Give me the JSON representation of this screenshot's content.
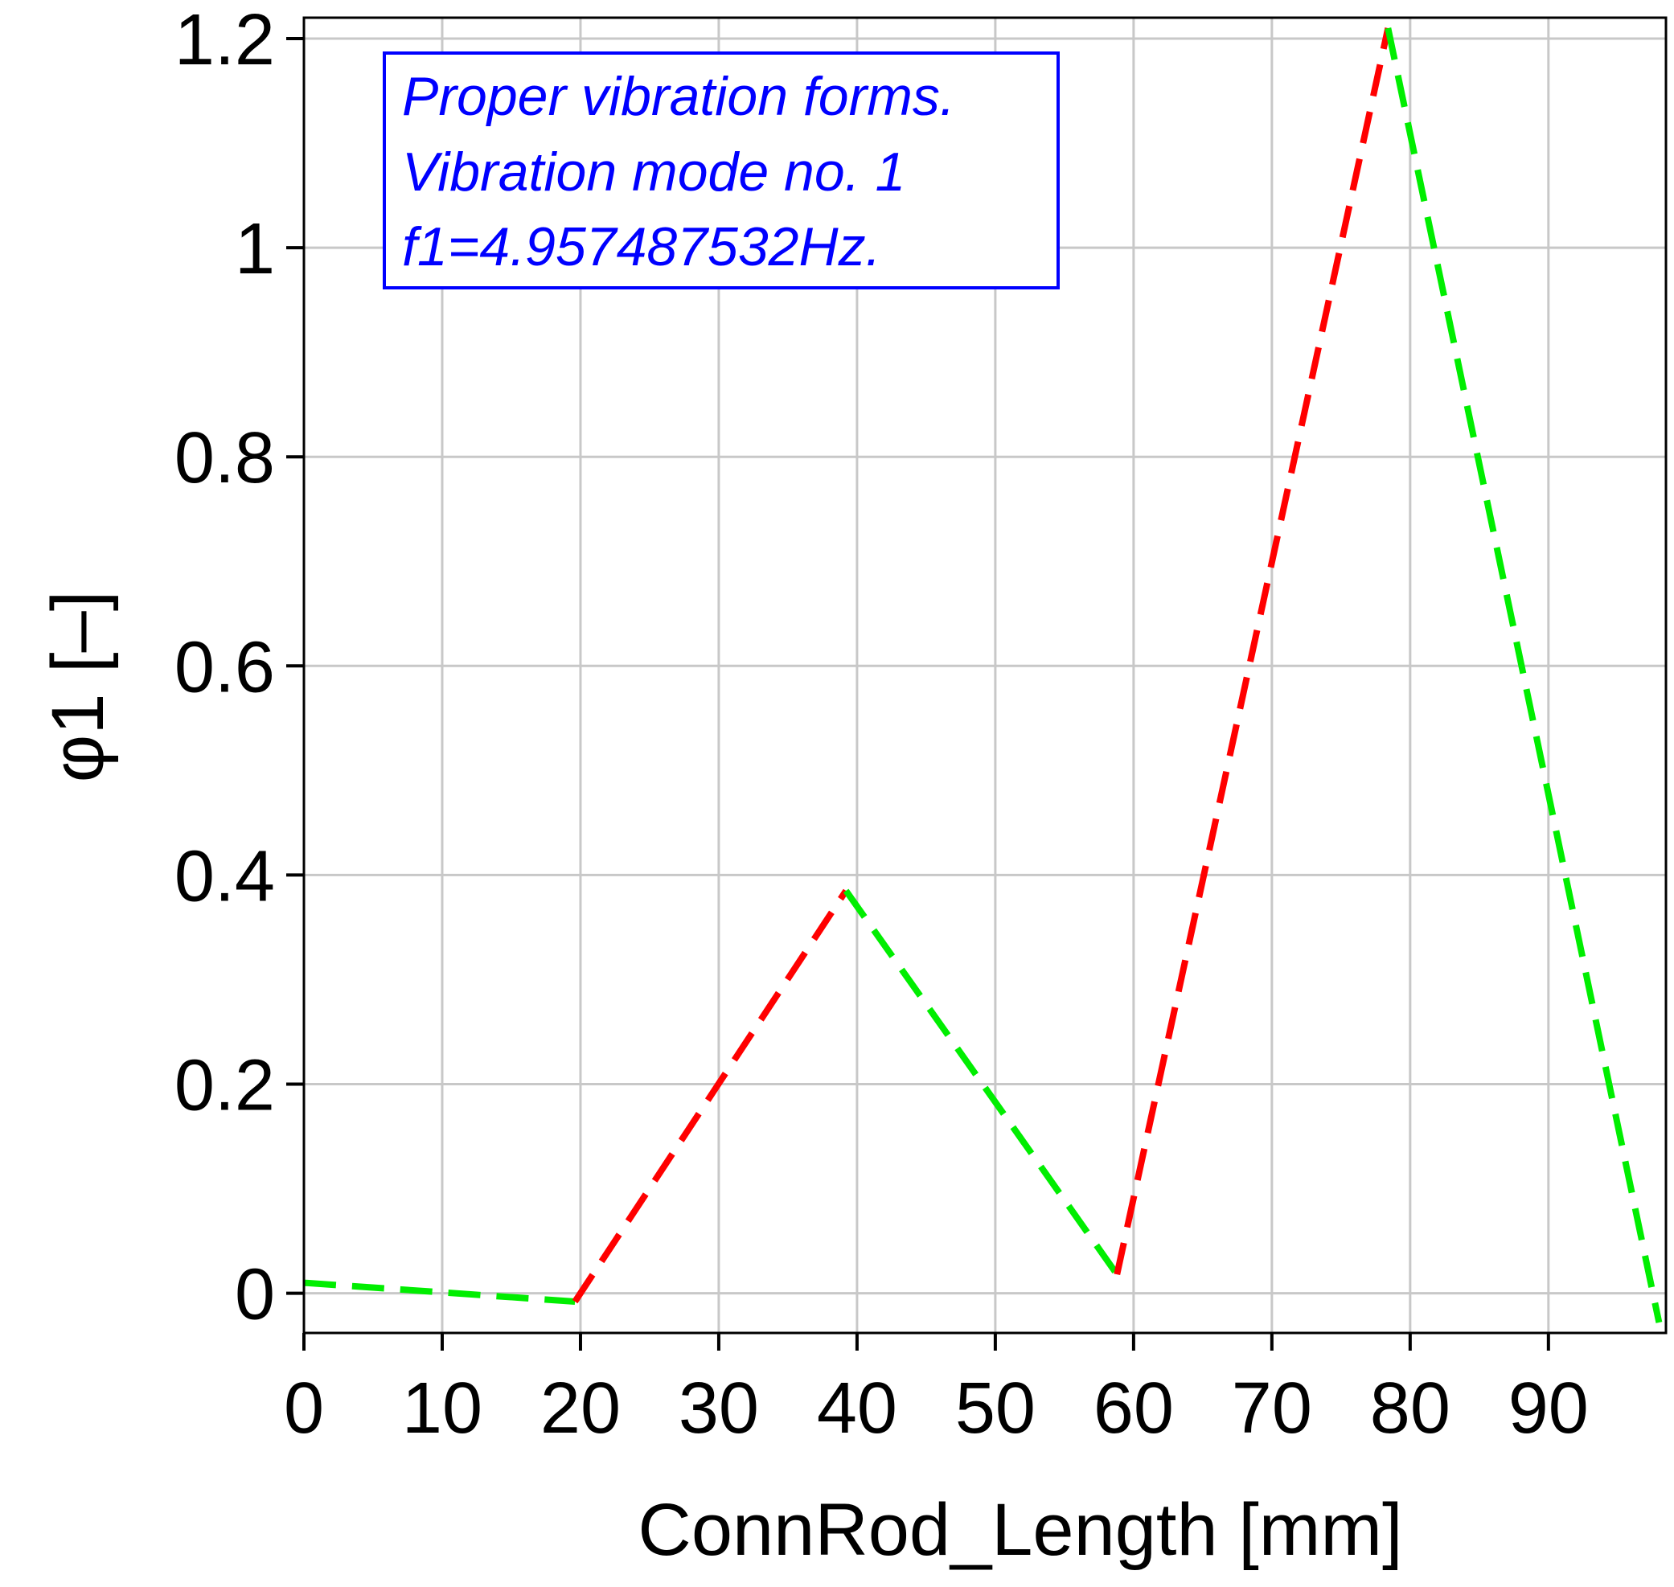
{
  "colors": {
    "grid": "#c8c8c8",
    "axis": "#000000",
    "note": "#0000ff",
    "segment_a": "#00ee00",
    "segment_b": "#ff0000"
  },
  "chart_data": {
    "type": "line",
    "xlabel": "ConnRod_Length [mm]",
    "ylabel": "φ1 [–]",
    "xlim": [
      0,
      98.5
    ],
    "ylim": [
      -0.038,
      1.22
    ],
    "xticks": [
      0,
      10,
      20,
      30,
      40,
      50,
      60,
      70,
      80,
      90
    ],
    "yticks": [
      0,
      0.2,
      0.4,
      0.6,
      0.8,
      1,
      1.2
    ],
    "xtick_labels": [
      "0",
      "10",
      "20",
      "30",
      "40",
      "50",
      "60",
      "70",
      "80",
      "90"
    ],
    "ytick_labels": [
      "0",
      "0.2",
      "0.4",
      "0.6",
      "0.8",
      "1",
      "1.2"
    ],
    "grid": true,
    "line_style": "dashed",
    "annotation": {
      "lines": [
        "Proper vibration forms.",
        "Vibration mode no. 1",
        "f1=4.957487532Hz."
      ],
      "position": "top-left"
    },
    "segments": [
      {
        "color": "green",
        "x": [
          0,
          19.6
        ],
        "y": [
          0.01,
          -0.008
        ]
      },
      {
        "color": "red",
        "x": [
          19.6,
          39.2
        ],
        "y": [
          -0.008,
          0.385
        ]
      },
      {
        "color": "green",
        "x": [
          39.2,
          58.8
        ],
        "y": [
          0.385,
          0.018
        ]
      },
      {
        "color": "red",
        "x": [
          58.8,
          78.4
        ],
        "y": [
          0.018,
          1.21
        ]
      },
      {
        "color": "green",
        "x": [
          78.4,
          98.0
        ],
        "y": [
          1.21,
          -0.028
        ]
      }
    ]
  }
}
